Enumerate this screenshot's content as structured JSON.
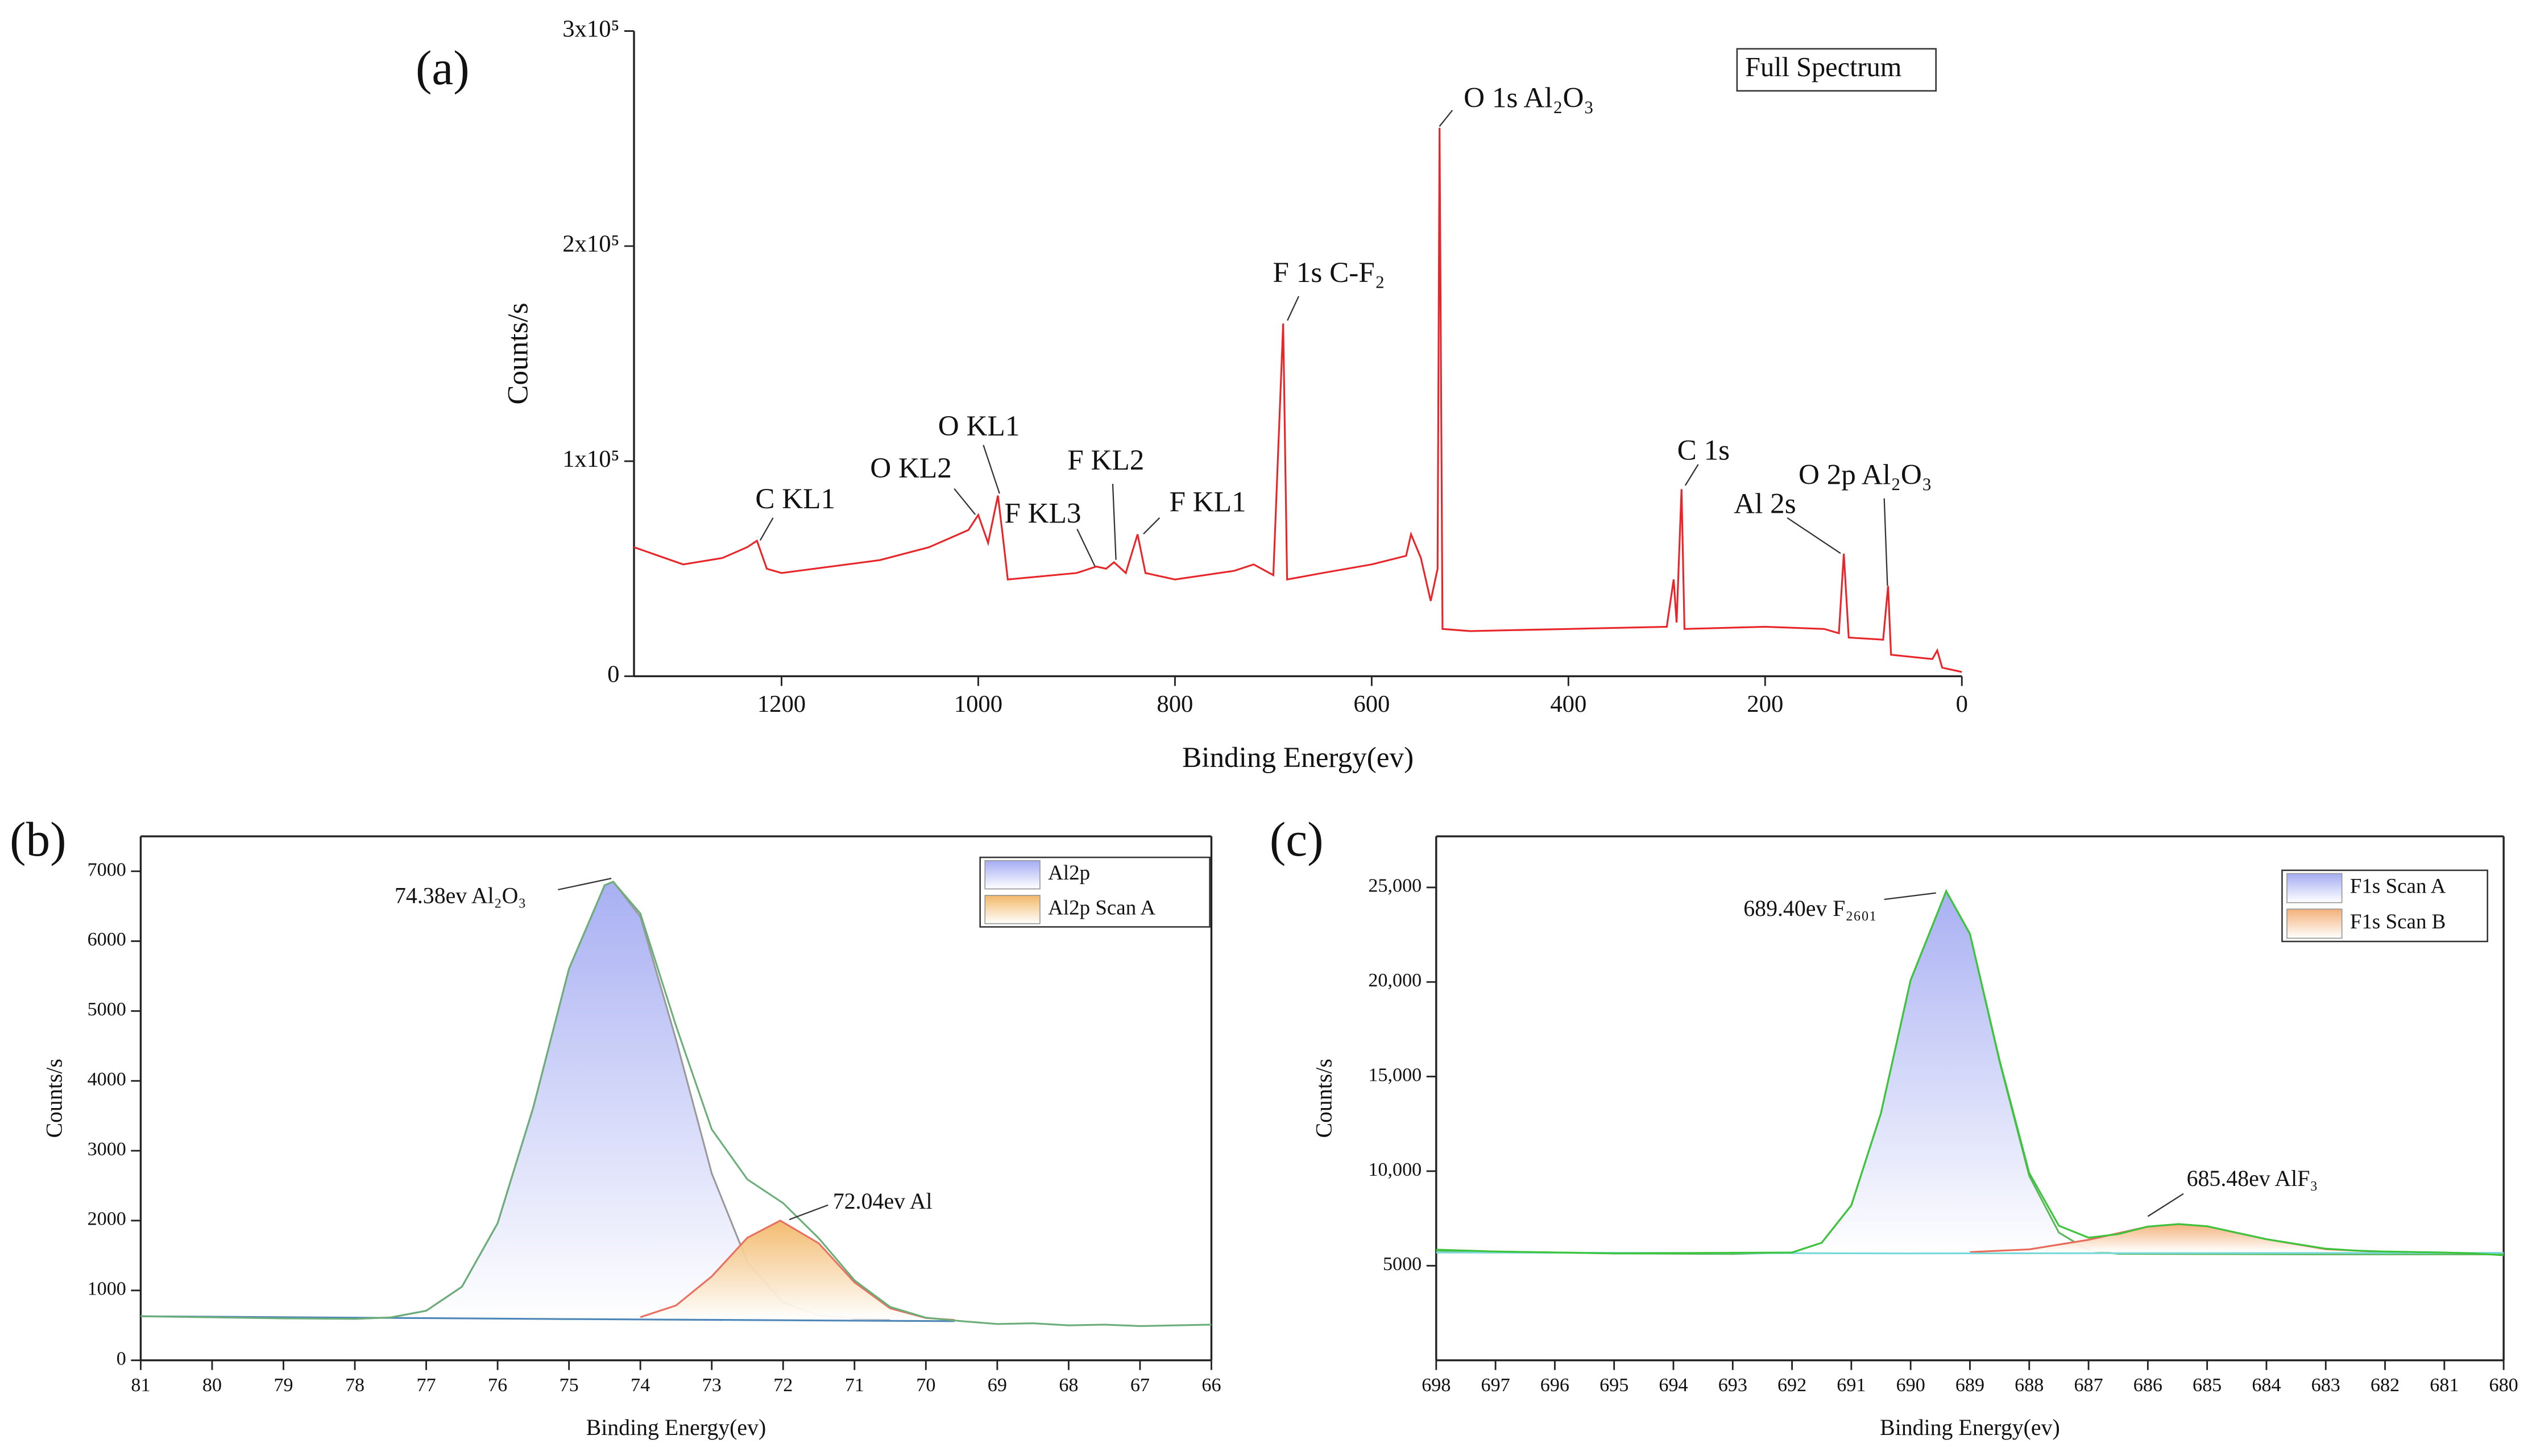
{
  "chart_data": [
    {
      "type": "line",
      "panel_label": "(a)",
      "xlabel": "Binding Energy(ev)",
      "ylabel": "Counts/s",
      "xlim": [
        1350,
        0
      ],
      "ylim": [
        0,
        300000
      ],
      "xticks": [
        1200,
        1000,
        800,
        600,
        400,
        200,
        0
      ],
      "yticks": [
        0,
        {
          "value": 100000,
          "label": "1x10⁵"
        },
        {
          "value": 200000,
          "label": "2x10⁵"
        },
        {
          "value": 300000,
          "label": "3x10⁵"
        }
      ],
      "legend": "upper right",
      "x": [
        1350,
        1300,
        1260,
        1235,
        1225,
        1215,
        1200,
        1100,
        1050,
        1010,
        1000,
        990,
        980,
        975,
        970,
        900,
        880,
        870,
        862,
        850,
        838,
        830,
        800,
        740,
        720,
        700,
        690,
        686,
        650,
        600,
        565,
        560,
        550,
        540,
        533,
        531,
        528,
        500,
        400,
        300,
        293,
        290,
        285,
        282,
        200,
        140,
        125,
        120,
        115,
        80,
        75,
        72,
        30,
        25,
        20,
        0
      ],
      "series": [
        {
          "name": "Full Spectrum",
          "color": "#e8262a",
          "values": [
            60000,
            52000,
            55000,
            60000,
            63000,
            50000,
            48000,
            54000,
            60000,
            68000,
            75000,
            62000,
            84000,
            65000,
            45000,
            48000,
            51000,
            50000,
            53000,
            48000,
            66000,
            48000,
            45000,
            49000,
            52000,
            47000,
            164000,
            45000,
            48000,
            52000,
            56000,
            66000,
            55000,
            35000,
            50000,
            255000,
            22000,
            21000,
            22000,
            23000,
            45000,
            25000,
            87000,
            22000,
            23000,
            22000,
            20000,
            57000,
            18000,
            17000,
            42000,
            10000,
            8000,
            12000,
            4000,
            2000
          ]
        }
      ],
      "annotations": [
        "O 1s Al₂O₃",
        "F 1s C-F₂",
        "C 1s",
        "Al 2s",
        "O 2p Al₂O₃",
        "O KL1",
        "O KL2",
        "F KL3",
        "F KL2",
        "F KL1",
        "C KL1"
      ]
    },
    {
      "type": "line",
      "panel_label": "(b)",
      "xlabel": "Binding Energy(ev)",
      "ylabel": "Counts/s",
      "xlim": [
        81,
        66
      ],
      "ylim": [
        0,
        7500
      ],
      "xticks": [
        81,
        80,
        79,
        78,
        77,
        76,
        75,
        74,
        73,
        72,
        71,
        70,
        69,
        68,
        67,
        66
      ],
      "yticks": [
        0,
        1000,
        2000,
        3000,
        4000,
        5000,
        6000,
        7000
      ],
      "legend": "upper right",
      "series": [
        {
          "name": "Al2p",
          "color": "#9a9a9a",
          "fill": "#a4acf2",
          "x": [
            78,
            77.5,
            77,
            76.5,
            76,
            75.5,
            75,
            74.5,
            74.38,
            74,
            73.5,
            73,
            72.5,
            72,
            71.5,
            71,
            70.5
          ],
          "values": [
            593,
            613,
            709,
            1053,
            1961,
            3620,
            5604,
            6800,
            6850,
            6349,
            4590,
            2675,
            1404,
            828,
            642,
            599,
            591
          ]
        },
        {
          "name": "Al2p Scan A",
          "color": "#e87060",
          "fill": "#f2b868",
          "x": [
            74,
            73.5,
            73,
            72.5,
            72.04,
            71.5,
            71,
            70.5,
            70,
            69.6
          ],
          "values": [
            617,
            785,
            1201,
            1755,
            2000,
            1674,
            1116,
            743,
            606,
            577
          ]
        },
        {
          "color": "#4f86b8",
          "x": [
            81,
            75,
            69.6
          ],
          "values": [
            630,
            590,
            560
          ]
        },
        {
          "color": "#6cae7a",
          "x": [
            81,
            79,
            78,
            77.5,
            77,
            76.5,
            76,
            75.5,
            75,
            74.5,
            74.38,
            74,
            73.5,
            73,
            72.5,
            72,
            71.5,
            71,
            70.5,
            70,
            69.5,
            69,
            68.5,
            68,
            67.5,
            67,
            66.5,
            66
          ],
          "values": [
            630,
            600,
            593,
            613,
            709,
            1053,
            1961,
            3620,
            5604,
            6800,
            6850,
            6396,
            4785,
            3306,
            2589,
            2250,
            1746,
            1145,
            764,
            610,
            560,
            520,
            530,
            500,
            510,
            490,
            500,
            510
          ]
        }
      ],
      "annotations": [
        "74.38ev Al₂O₃",
        "72.04ev Al"
      ]
    },
    {
      "type": "line",
      "panel_label": "(c)",
      "xlabel": "Binding Energy(ev)",
      "ylabel": "Counts/s",
      "xlim": [
        698,
        680
      ],
      "ylim": [
        0,
        27700
      ],
      "xticks": [
        698,
        697,
        696,
        695,
        694,
        693,
        692,
        691,
        690,
        689,
        688,
        687,
        686,
        685,
        684,
        683,
        682,
        681,
        680
      ],
      "yticks": [
        5000,
        {
          "value": 10000,
          "label": "10,000"
        },
        {
          "value": 15000,
          "label": "15,000"
        },
        {
          "value": 20000,
          "label": "20,000"
        },
        {
          "value": 25000,
          "label": "25,000"
        }
      ],
      "legend": "upper right",
      "series": [
        {
          "name": "F1s Scan A",
          "color": "#5cb85c",
          "fill": "#a4acf2",
          "x": [
            698,
            695,
            693,
            692,
            691.5,
            691,
            690.5,
            690,
            689.4,
            689,
            688.5,
            688,
            687.5,
            687,
            686.5,
            683,
            680
          ],
          "values": [
            5800,
            5650,
            5620,
            5698,
            6214,
            8192,
            13069,
            20096,
            24800,
            22534,
            15795,
            9747,
            6752,
            5811,
            5627,
            5600,
            5600
          ]
        },
        {
          "name": "F1s Scan B",
          "color": "#e86a5a",
          "fill": "#f4b078",
          "x": [
            689,
            688,
            687,
            686,
            685.48,
            685,
            684,
            683,
            682
          ],
          "values": [
            5720,
            5865,
            6372,
            7065,
            7200,
            7085,
            6401,
            5877,
            5723
          ]
        },
        {
          "color": "#7ad8d8",
          "x": [
            698,
            690,
            680
          ],
          "values": [
            5700,
            5650,
            5680
          ]
        },
        {
          "color": "#3cc43c",
          "x": [
            698,
            697,
            695,
            692,
            691.5,
            691,
            690.5,
            690,
            689.4,
            689,
            688.5,
            688,
            687.5,
            687,
            686.5,
            686,
            685.48,
            685,
            684,
            683,
            682.5,
            682,
            681,
            680.5,
            680
          ],
          "values": [
            5850,
            5750,
            5650,
            5700,
            6214,
            8192,
            13069,
            20096,
            24800,
            22554,
            15860,
            9900,
            7115,
            6483,
            6672,
            7070,
            7200,
            7085,
            6401,
            5900,
            5800,
            5750,
            5700,
            5650,
            5550
          ]
        }
      ],
      "annotations": [
        "689.40ev F₂₆₀₁",
        "685.48ev AlF₃"
      ]
    }
  ]
}
